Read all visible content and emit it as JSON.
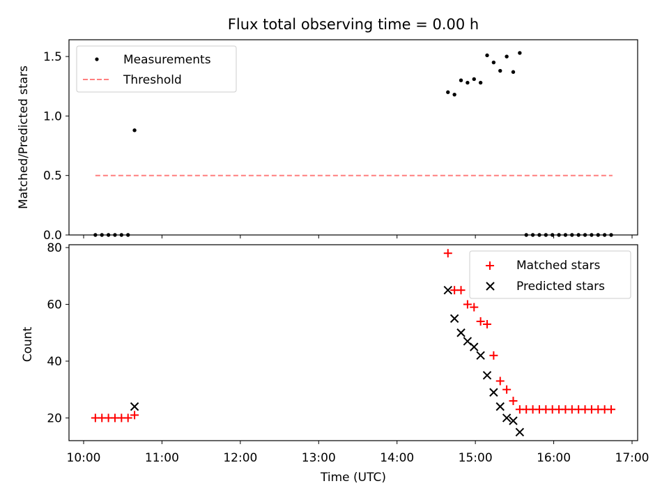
{
  "title": "Flux total observing time = 0.00 h",
  "colors": {
    "measurement": "#000000",
    "threshold": "#ff7f7f",
    "matched": "#ff0000",
    "predicted": "#000000",
    "axes": "#000000"
  },
  "chart_data": [
    {
      "type": "scatter",
      "panel": "top",
      "title": "Flux total observing time = 0.00 h",
      "xlabel": "",
      "ylabel": "Matched/Predicted stars",
      "xlim": [
        "10:00",
        "17:00"
      ],
      "ylim": [
        0,
        1.6
      ],
      "yticks": [
        0.0,
        0.5,
        1.0,
        1.5
      ],
      "ytick_labels": [
        "0.0",
        "0.5",
        "1.0",
        "1.5"
      ],
      "legend": {
        "placement": "upper-left",
        "entries": [
          "Measurements",
          "Threshold"
        ]
      },
      "threshold": {
        "name": "Threshold",
        "value": 0.5,
        "x": [
          "10:09",
          "16:45"
        ],
        "style": "dashed"
      },
      "series": [
        {
          "name": "Measurements",
          "marker": "dot",
          "x": [
            "10:09",
            "10:14",
            "10:19",
            "10:24",
            "10:29",
            "10:34",
            "10:39",
            "14:39",
            "14:44",
            "14:49",
            "14:54",
            "14:59",
            "15:04",
            "15:09",
            "15:14",
            "15:19",
            "15:24",
            "15:29",
            "15:34",
            "15:39",
            "15:44",
            "15:49",
            "15:54",
            "15:59",
            "16:04",
            "16:09",
            "16:14",
            "16:19",
            "16:24",
            "16:29",
            "16:34",
            "16:39",
            "16:44"
          ],
          "y": [
            0,
            0,
            0,
            0,
            0,
            0,
            0.88,
            1.2,
            1.18,
            1.3,
            1.28,
            1.31,
            1.28,
            1.51,
            1.45,
            1.38,
            1.5,
            1.37,
            1.53,
            0,
            0,
            0,
            0,
            0,
            0,
            0,
            0,
            0,
            0,
            0,
            0,
            0,
            0
          ]
        }
      ]
    },
    {
      "type": "scatter",
      "panel": "bottom",
      "xlabel": "Time (UTC)",
      "ylabel": "Count",
      "xlim": [
        "10:00",
        "17:00"
      ],
      "xticks": [
        "10:00",
        "11:00",
        "12:00",
        "13:00",
        "14:00",
        "15:00",
        "16:00",
        "17:00"
      ],
      "ylim": [
        12,
        81
      ],
      "yticks": [
        20,
        40,
        60,
        80
      ],
      "ytick_labels": [
        "20",
        "40",
        "60",
        "80"
      ],
      "legend": {
        "placement": "upper-right",
        "entries": [
          "Matched stars",
          "Predicted stars"
        ]
      },
      "series": [
        {
          "name": "Matched stars",
          "marker": "plus",
          "x": [
            "10:09",
            "10:14",
            "10:19",
            "10:24",
            "10:29",
            "10:34",
            "10:39",
            "14:39",
            "14:44",
            "14:49",
            "14:54",
            "14:59",
            "15:04",
            "15:09",
            "15:14",
            "15:19",
            "15:24",
            "15:29",
            "15:34",
            "15:39",
            "15:44",
            "15:49",
            "15:54",
            "15:59",
            "16:04",
            "16:09",
            "16:14",
            "16:19",
            "16:24",
            "16:29",
            "16:34",
            "16:39",
            "16:44"
          ],
          "y": [
            20,
            20,
            20,
            20,
            20,
            20,
            21,
            78,
            65,
            65,
            60,
            59,
            54,
            53,
            42,
            33,
            30,
            26,
            23,
            23,
            23,
            23,
            23,
            23,
            23,
            23,
            23,
            23,
            23,
            23,
            23,
            23,
            23
          ]
        },
        {
          "name": "Predicted stars",
          "marker": "x",
          "x": [
            "10:39",
            "14:39",
            "14:44",
            "14:49",
            "14:54",
            "14:59",
            "15:04",
            "15:09",
            "15:14",
            "15:19",
            "15:24",
            "15:29",
            "15:34"
          ],
          "y": [
            24,
            65,
            55,
            50,
            47,
            45,
            42,
            35,
            29,
            24,
            20,
            19,
            15
          ]
        }
      ]
    }
  ]
}
